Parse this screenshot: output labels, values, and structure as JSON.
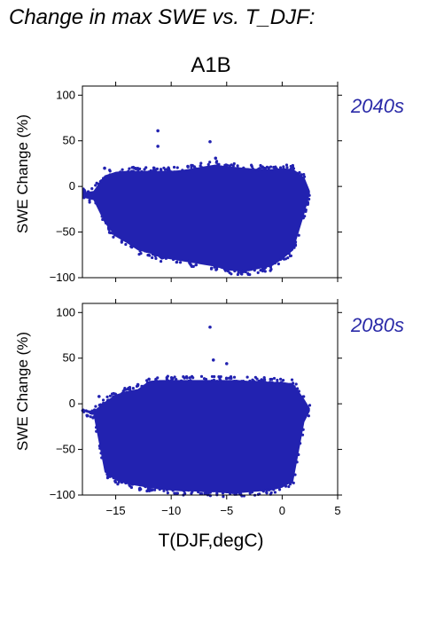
{
  "page_title": "Change in max SWE vs. T_DJF:",
  "chart_data": {
    "type": "scatter",
    "scenario": "A1B",
    "xlabel": "T(DJF,degC)",
    "ylabel": "SWE Change (%)",
    "xlim": [
      -18,
      5
    ],
    "ylim": [
      -100,
      110
    ],
    "x_ticks": [
      -15,
      -10,
      -5,
      0,
      5
    ],
    "y_ticks": [
      -100,
      -50,
      0,
      50,
      100
    ],
    "grid": false,
    "point_color": "#2222b0",
    "label_color": "#2a2aa8",
    "panels": [
      {
        "period": "2040s",
        "outliers": [
          [
            -11.2,
            61
          ],
          [
            -11.2,
            44
          ],
          [
            -6.5,
            49
          ],
          [
            -6.0,
            31
          ],
          [
            -16.0,
            20
          ],
          [
            -8.5,
            22
          ]
        ],
        "envelope": {
          "x": [
            -18.0,
            -17.0,
            -16.0,
            -15.0,
            -14.0,
            -13.0,
            -12.0,
            -11.0,
            -10.0,
            -9.0,
            -8.0,
            -7.0,
            -6.0,
            -5.0,
            -4.0,
            -3.0,
            -2.0,
            -1.0,
            0.0,
            1.0,
            2.0,
            2.5
          ],
          "upper": [
            -7,
            -5,
            12,
            16,
            17,
            17,
            17,
            17,
            17,
            18,
            20,
            22,
            24,
            22,
            21,
            20,
            19,
            19,
            20,
            19,
            10,
            -5
          ],
          "lower": [
            -12,
            -15,
            -40,
            -55,
            -62,
            -70,
            -73,
            -78,
            -80,
            -82,
            -84,
            -86,
            -88,
            -92,
            -93,
            -93,
            -90,
            -88,
            -80,
            -70,
            -30,
            -8
          ]
        }
      },
      {
        "period": "2080s",
        "outliers": [
          [
            -6.5,
            84
          ],
          [
            -6.2,
            48
          ],
          [
            -5.0,
            44
          ],
          [
            -12.0,
            27
          ],
          [
            -13.0,
            21
          ],
          [
            -16.5,
            8
          ],
          [
            -15.0,
            10
          ]
        ],
        "envelope": {
          "x": [
            -18.0,
            -17.0,
            -16.0,
            -15.0,
            -14.0,
            -13.0,
            -12.0,
            -11.0,
            -10.0,
            -9.0,
            -8.0,
            -7.0,
            -6.0,
            -5.0,
            -4.0,
            -3.0,
            -2.0,
            -1.0,
            0.0,
            1.0,
            2.0,
            2.5
          ],
          "upper": [
            -6,
            -8,
            2,
            10,
            14,
            16,
            25,
            26,
            26,
            26,
            26,
            26,
            26,
            26,
            26,
            25,
            25,
            24,
            24,
            22,
            5,
            -5
          ],
          "lower": [
            -8,
            -12,
            -75,
            -84,
            -88,
            -90,
            -92,
            -94,
            -95,
            -96,
            -96,
            -97,
            -97,
            -98,
            -98,
            -97,
            -96,
            -95,
            -92,
            -85,
            -20,
            -8
          ]
        }
      }
    ]
  }
}
